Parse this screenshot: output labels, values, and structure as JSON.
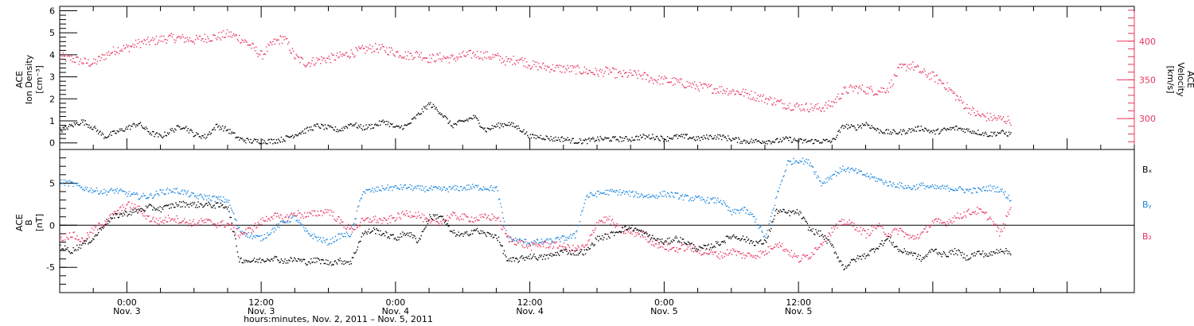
{
  "chart_data": [
    {
      "type": "scatter",
      "panel": "top",
      "ylabel_left_lines": [
        "ACE",
        "Ion Density",
        "[cm⁻³]"
      ],
      "ylabel_right_lines": [
        "ACE",
        "Velocity",
        "[km/s]"
      ],
      "ylim_left": [
        -0.3,
        6.2
      ],
      "ylim_right": [
        260,
        445
      ],
      "yticks_left": [
        "0",
        "1",
        "2",
        "3",
        "4",
        "5",
        "6"
      ],
      "yticks_right": [
        "300",
        "350",
        "400"
      ],
      "series": [
        {
          "axis": "left",
          "color": "#000000",
          "x_hours": [
            0,
            1,
            2,
            3,
            4,
            5,
            6,
            7,
            8,
            9,
            10,
            11,
            12,
            13,
            14,
            15,
            16,
            17,
            18,
            19,
            20,
            21,
            22,
            23,
            24,
            25,
            26,
            27,
            28,
            29,
            30,
            31,
            32,
            33,
            34,
            35,
            36,
            37,
            38,
            39,
            40,
            41,
            42,
            43,
            44,
            45,
            46,
            47,
            48,
            49,
            50,
            51,
            52,
            53,
            54,
            55,
            56,
            57,
            58,
            59,
            60,
            61,
            62,
            63,
            64,
            65,
            66,
            67,
            68,
            69,
            70,
            71,
            72,
            73,
            74,
            75,
            76,
            77,
            78,
            79,
            80,
            81,
            82,
            83,
            84,
            85
          ],
          "y": [
            0.6,
            0.8,
            1.0,
            0.7,
            0.3,
            0.5,
            0.7,
            0.9,
            0.5,
            0.3,
            0.6,
            0.8,
            0.4,
            0.3,
            0.8,
            0.6,
            0.2,
            0.1,
            0.1,
            0.1,
            0.2,
            0.4,
            0.6,
            0.8,
            0.7,
            0.6,
            0.9,
            0.7,
            0.8,
            1.0,
            0.7,
            0.8,
            1.3,
            1.8,
            1.4,
            0.8,
            1.0,
            1.2,
            0.6,
            0.8,
            0.9,
            0.7,
            0.3,
            0.3,
            0.2,
            0.2,
            0.1,
            0.1,
            0.2,
            0.2,
            0.2,
            0.2,
            0.3,
            0.3,
            0.2,
            0.3,
            0.3,
            0.2,
            0.3,
            0.3,
            0.2,
            0.1,
            0.1,
            0.1,
            0.1,
            0.2,
            0.1,
            0.1,
            0.1,
            0.1,
            0.8,
            0.7,
            0.9,
            0.6,
            0.5,
            0.5,
            0.6,
            0.7,
            0.5,
            0.6,
            0.7,
            0.6,
            0.5,
            0.4,
            0.5,
            0.4
          ]
        },
        {
          "axis": "right",
          "color": "#e8355f",
          "x_hours": [
            0,
            1,
            2,
            3,
            4,
            5,
            6,
            7,
            8,
            9,
            10,
            11,
            12,
            13,
            14,
            15,
            16,
            17,
            18,
            19,
            20,
            21,
            22,
            23,
            24,
            25,
            26,
            27,
            28,
            29,
            30,
            31,
            32,
            33,
            34,
            35,
            36,
            37,
            38,
            39,
            40,
            41,
            42,
            43,
            44,
            45,
            46,
            47,
            48,
            49,
            50,
            51,
            52,
            53,
            54,
            55,
            56,
            57,
            58,
            59,
            60,
            61,
            62,
            63,
            64,
            65,
            66,
            67,
            68,
            69,
            70,
            71,
            72,
            73,
            74,
            75,
            76,
            77,
            78,
            79,
            80,
            81,
            82,
            83,
            84,
            85
          ],
          "y": [
            380,
            378,
            374,
            372,
            382,
            390,
            392,
            398,
            400,
            403,
            405,
            404,
            402,
            405,
            406,
            410,
            405,
            395,
            382,
            398,
            405,
            380,
            372,
            376,
            378,
            381,
            385,
            389,
            392,
            390,
            386,
            382,
            384,
            378,
            380,
            378,
            382,
            384,
            382,
            380,
            374,
            378,
            370,
            368,
            366,
            365,
            364,
            362,
            360,
            362,
            357,
            358,
            356,
            351,
            350,
            348,
            345,
            342,
            340,
            338,
            336,
            334,
            330,
            326,
            322,
            318,
            316,
            315,
            314,
            320,
            336,
            340,
            338,
            336,
            340,
            365,
            370,
            360,
            355,
            345,
            330,
            315,
            305,
            302,
            300,
            298
          ]
        }
      ]
    },
    {
      "type": "scatter",
      "panel": "bottom",
      "ylabel_lines": [
        "ACE",
        "B",
        "[nT]"
      ],
      "ylim": [
        -8,
        9
      ],
      "yticks": [
        "-5",
        "0",
        "5"
      ],
      "zero_line": true,
      "legend": [
        "Bx",
        "By",
        "Bz"
      ],
      "series": [
        {
          "name": "Bx",
          "color": "#000000",
          "x_hours": [
            0,
            1,
            2,
            3,
            4,
            5,
            6,
            7,
            8,
            9,
            10,
            11,
            12,
            13,
            14,
            15,
            16,
            17,
            18,
            19,
            20,
            21,
            22,
            23,
            24,
            25,
            26,
            27,
            28,
            29,
            30,
            31,
            32,
            33,
            34,
            35,
            36,
            37,
            38,
            39,
            40,
            41,
            42,
            43,
            44,
            45,
            46,
            47,
            48,
            49,
            50,
            51,
            52,
            53,
            54,
            55,
            56,
            57,
            58,
            59,
            60,
            61,
            62,
            63,
            64,
            65,
            66,
            67,
            68,
            69,
            70,
            71,
            72,
            73,
            74,
            75,
            76,
            77,
            78,
            79,
            80,
            81,
            82,
            83,
            84,
            85
          ],
          "y": [
            -2.5,
            -3.0,
            -2.2,
            -1.5,
            0.3,
            1.2,
            1.5,
            1.8,
            2.2,
            2.0,
            2.4,
            2.6,
            2.5,
            2.5,
            2.4,
            2.3,
            -4.0,
            -4.2,
            -4.1,
            -3.8,
            -4.2,
            -4.0,
            -4.3,
            -4.1,
            -4.4,
            -4.2,
            -4.3,
            -1.0,
            -0.5,
            -1.0,
            -1.5,
            -0.8,
            -1.8,
            1.0,
            1.2,
            -0.8,
            -1.2,
            -0.5,
            -1.0,
            -1.2,
            -4.2,
            -4.0,
            -3.6,
            -3.8,
            -3.5,
            -3.0,
            -3.2,
            -3.1,
            -1.5,
            -1.2,
            -0.5,
            -0.2,
            -0.8,
            -1.5,
            -2.0,
            -1.5,
            -2.0,
            -2.8,
            -2.5,
            -2.0,
            -1.2,
            -1.5,
            -2.0,
            -2.0,
            1.8,
            1.5,
            1.6,
            -0.5,
            -1.0,
            -2.5,
            -5.0,
            -4.0,
            -3.5,
            -2.5,
            -1.5,
            -3.0,
            -3.2,
            -4.0,
            -2.8,
            -3.5,
            -3.0,
            -3.8,
            -3.2,
            -3.5,
            -2.8,
            -3.3
          ]
        },
        {
          "name": "By",
          "color": "#1a86e0",
          "x_hours": [
            0,
            1,
            2,
            3,
            4,
            5,
            6,
            7,
            8,
            9,
            10,
            11,
            12,
            13,
            14,
            15,
            16,
            17,
            18,
            19,
            20,
            21,
            22,
            23,
            24,
            25,
            26,
            27,
            28,
            29,
            30,
            31,
            32,
            33,
            34,
            35,
            36,
            37,
            38,
            39,
            40,
            41,
            42,
            43,
            44,
            45,
            46,
            47,
            48,
            49,
            50,
            51,
            52,
            53,
            54,
            55,
            56,
            57,
            58,
            59,
            60,
            61,
            62,
            63,
            64,
            65,
            66,
            67,
            68,
            69,
            70,
            71,
            72,
            73,
            74,
            75,
            76,
            77,
            78,
            79,
            80,
            81,
            82,
            83,
            84,
            85
          ],
          "y": [
            5.2,
            5.0,
            4.5,
            4.2,
            4.0,
            4.2,
            3.8,
            3.5,
            3.5,
            4.0,
            4.2,
            4.0,
            3.5,
            3.4,
            3.2,
            3.0,
            -0.5,
            -1.2,
            -1.5,
            -0.5,
            0.5,
            1.0,
            -0.8,
            -1.5,
            -2.0,
            -1.2,
            -1.0,
            4.0,
            4.2,
            4.5,
            4.5,
            4.6,
            4.4,
            4.4,
            4.3,
            4.4,
            4.5,
            4.6,
            4.5,
            4.4,
            -1.5,
            -1.8,
            -2.0,
            -1.9,
            -1.8,
            -1.5,
            -1.2,
            3.5,
            3.8,
            4.0,
            4.0,
            3.8,
            3.6,
            3.5,
            3.8,
            3.6,
            3.3,
            3.2,
            3.0,
            3.0,
            1.5,
            2.0,
            1.0,
            -1.5,
            3.5,
            7.5,
            7.8,
            7.5,
            5.0,
            6.0,
            6.8,
            6.5,
            6.0,
            5.5,
            5.0,
            4.8,
            4.5,
            4.8,
            4.5,
            4.5,
            4.4,
            4.2,
            4.2,
            4.5,
            4.3,
            3.0
          ]
        },
        {
          "name": "Bz",
          "color": "#e8355f",
          "x_hours": [
            0,
            1,
            2,
            3,
            4,
            5,
            6,
            7,
            8,
            9,
            10,
            11,
            12,
            13,
            14,
            15,
            16,
            17,
            18,
            19,
            20,
            21,
            22,
            23,
            24,
            25,
            26,
            27,
            28,
            29,
            30,
            31,
            32,
            33,
            34,
            35,
            36,
            37,
            38,
            39,
            40,
            41,
            42,
            43,
            44,
            45,
            46,
            47,
            48,
            49,
            50,
            51,
            52,
            53,
            54,
            55,
            56,
            57,
            58,
            59,
            60,
            61,
            62,
            63,
            64,
            65,
            66,
            67,
            68,
            69,
            70,
            71,
            72,
            73,
            74,
            75,
            76,
            77,
            78,
            79,
            80,
            81,
            82,
            83,
            84,
            85
          ],
          "y": [
            -1.5,
            -1.0,
            -1.8,
            -0.5,
            0.5,
            1.5,
            2.5,
            2.0,
            0.8,
            0.5,
            1.0,
            0.5,
            0.3,
            0.5,
            0.2,
            0.2,
            -1.0,
            -0.5,
            0.5,
            1.2,
            0.8,
            1.5,
            1.2,
            1.5,
            1.8,
            0.5,
            -0.5,
            0.5,
            0.8,
            0.5,
            1.0,
            1.5,
            1.3,
            0.3,
            0.5,
            1.2,
            1.0,
            0.8,
            1.0,
            1.0,
            -1.5,
            -2.0,
            -2.5,
            -2.2,
            -2.3,
            -2.5,
            -2.8,
            -2.5,
            0.5,
            0.8,
            -0.5,
            -0.8,
            -1.0,
            -2.0,
            -2.5,
            -2.8,
            -2.5,
            -3.0,
            -3.2,
            -3.5,
            -3.0,
            -3.5,
            -3.5,
            -3.2,
            -2.0,
            -3.0,
            -4.0,
            -3.5,
            -2.0,
            -0.5,
            0.5,
            0.0,
            -1.0,
            0.0,
            -1.0,
            -0.5,
            -1.5,
            -1.0,
            0.5,
            0.3,
            1.0,
            1.5,
            1.8,
            1.0,
            -1.0,
            2.5
          ]
        }
      ]
    }
  ],
  "x_axis": {
    "start_hour_label": "Nov. 2, 2011 18:00",
    "hours_span": 96,
    "ticks": [
      {
        "hour": 6,
        "time": "0:00",
        "date": "Nov. 3"
      },
      {
        "hour": 18,
        "time": "12:00",
        "date": "Nov. 3"
      },
      {
        "hour": 30,
        "time": "0:00",
        "date": "Nov. 4"
      },
      {
        "hour": 42,
        "time": "12:00",
        "date": "Nov. 4"
      },
      {
        "hour": 54,
        "time": "0:00",
        "date": "Nov. 5"
      },
      {
        "hour": 66,
        "time": "12:00",
        "date": "Nov. 5"
      }
    ],
    "title": "hours:minutes, Nov.  2, 2011 – Nov.  5, 2011"
  },
  "legend_labels": {
    "bx": "Bₓ",
    "by": "Bᵧ",
    "bz": "B₂"
  }
}
